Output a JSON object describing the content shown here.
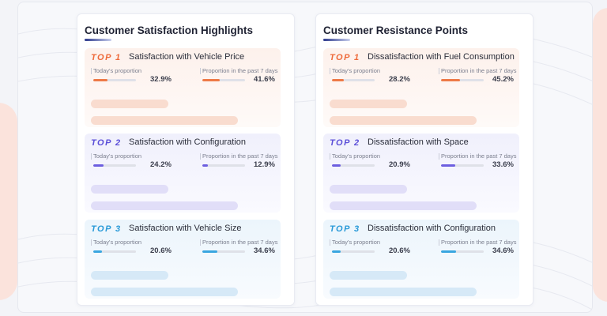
{
  "panels": [
    {
      "title": "Customer Satisfaction Highlights",
      "items": [
        {
          "rank": "TOP 1",
          "theme": "orange",
          "title": "Satisfaction with Vehicle Price",
          "today_label": "Today's proportion",
          "today_value": "32.9%",
          "today_fraction": 0.329,
          "week_label": "Proportion in the past 7 days",
          "week_value": "41.6%",
          "week_fraction": 0.416
        },
        {
          "rank": "TOP 2",
          "theme": "purple",
          "title": "Satisfaction with Configuration",
          "today_label": "Today's proportion",
          "today_value": "24.2%",
          "today_fraction": 0.242,
          "week_label": "Proportion in the past 7 days",
          "week_value": "12.9%",
          "week_fraction": 0.129
        },
        {
          "rank": "TOP 3",
          "theme": "blue",
          "title": "Satisfaction with Vehicle Size",
          "today_label": "Today's proportion",
          "today_value": "20.6%",
          "today_fraction": 0.206,
          "week_label": "Proportion in the past 7 days",
          "week_value": "34.6%",
          "week_fraction": 0.346
        }
      ]
    },
    {
      "title": "Customer Resistance Points",
      "items": [
        {
          "rank": "TOP 1",
          "theme": "orange",
          "title": "Dissatisfaction with Fuel Consumption",
          "today_label": "Today's proportion",
          "today_value": "28.2%",
          "today_fraction": 0.282,
          "week_label": "Proportion in the past 7 days",
          "week_value": "45.2%",
          "week_fraction": 0.452
        },
        {
          "rank": "TOP 2",
          "theme": "purple",
          "title": "Dissatisfaction with Space",
          "today_label": "Today's proportion",
          "today_value": "20.9%",
          "today_fraction": 0.209,
          "week_label": "Proportion in the past 7 days",
          "week_value": "33.6%",
          "week_fraction": 0.336
        },
        {
          "rank": "TOP 3",
          "theme": "blue",
          "title": "Dissatisfaction with Configuration",
          "today_label": "Today's proportion",
          "today_value": "20.6%",
          "today_fraction": 0.206,
          "week_label": "Proportion in the past 7 days",
          "week_value": "34.6%",
          "week_fraction": 0.346
        }
      ]
    }
  ],
  "colors": {
    "orange": "#ee6a3a",
    "purple": "#5b4fd8",
    "blue": "#2a9ad8"
  }
}
